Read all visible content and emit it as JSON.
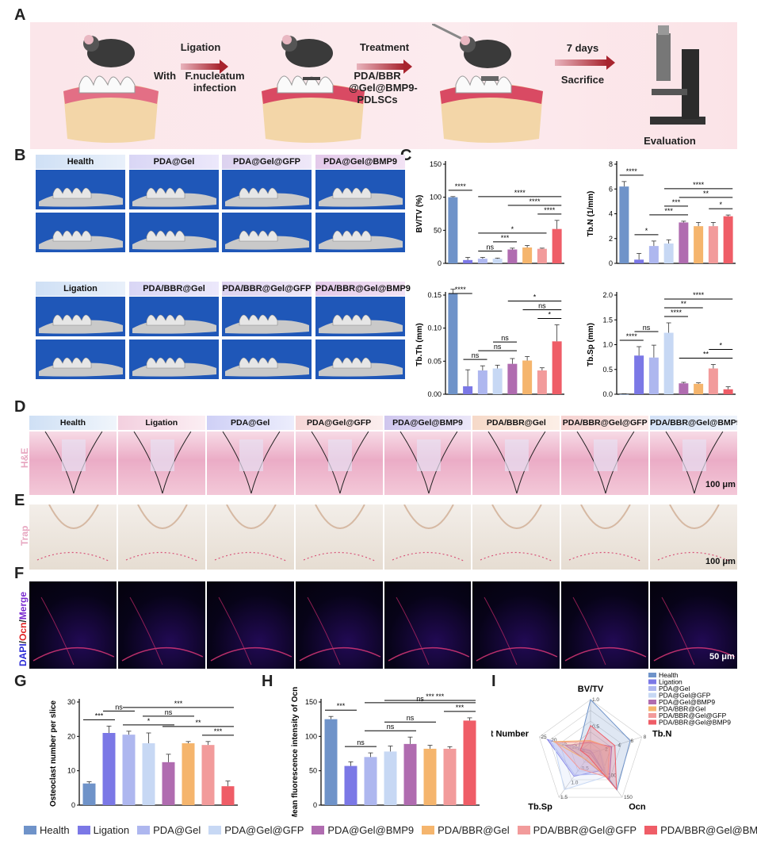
{
  "panels": {
    "A": "A",
    "B": "B",
    "C": "C",
    "D": "D",
    "E": "E",
    "F": "F",
    "G": "G",
    "H": "H",
    "I": "I"
  },
  "schematic": {
    "step1_title": "Ligation",
    "step1_sub1": "With",
    "step1_sub2": "F.nucleatum",
    "step1_sub3": "infection",
    "step2_title": "Treatment",
    "step2_sub": "PDA/BBR @Gel@BMP9- PDLSCs",
    "step3_title": "7 days",
    "step3_sub": "Sacrifice",
    "eval": "Evaluation"
  },
  "groups": [
    "Health",
    "Ligation",
    "PDA@Gel",
    "PDA@Gel@GFP",
    "PDA@Gel@BMP9",
    "PDA/BBR@Gel",
    "PDA/BBR@Gel@GFP",
    "PDA/BBR@Gel@BMP9"
  ],
  "colors": [
    "#6f93c9",
    "#7b78e6",
    "#aeb7ef",
    "#c7d8f4",
    "#b06cb0",
    "#f5b56d",
    "#f29b9b",
    "#ef5d67"
  ],
  "microct_labels": [
    "Health",
    "PDA@Gel",
    "PDA@Gel@GFP",
    "PDA@Gel@BMP9",
    "Ligation",
    "PDA/BBR@Gel",
    "PDA/BBR@Gel@GFP",
    "PDA/BBR@Gel@BMP9"
  ],
  "row_labels": {
    "he": "H&E",
    "trap": "Trap",
    "fluo_dapi": "DAPI",
    "fluo_ocn": "Ocn",
    "fluo_merge": "Merge"
  },
  "scale_bars": {
    "he": "100 μm",
    "trap": "100 μm",
    "fluo": "50 μm"
  },
  "chart_data": [
    {
      "type": "bar",
      "panel": "C",
      "ylabel": "BV/TV (%)",
      "ylim": [
        0,
        150
      ],
      "yticks": [
        0,
        50,
        100,
        150
      ],
      "categories": [
        "Health",
        "Ligation",
        "PDA@Gel",
        "PDA@Gel@GFP",
        "PDA@Gel@BMP9",
        "PDA/BBR@Gel",
        "PDA/BBR@Gel@GFP",
        "PDA/BBR@Gel@BMP9"
      ],
      "values": [
        100,
        5,
        7,
        7,
        21,
        24,
        22,
        52
      ],
      "errors": [
        1,
        4,
        2,
        1,
        2,
        3,
        1,
        13
      ],
      "annotations": [
        {
          "a": 0,
          "b": 1,
          "label": "****"
        },
        {
          "a": 2,
          "b": 3,
          "label": "ns"
        },
        {
          "a": 3,
          "b": 4,
          "label": "***"
        },
        {
          "a": 2,
          "b": 6,
          "label": "*"
        },
        {
          "a": 6,
          "b": 7,
          "label": "****"
        },
        {
          "a": 4,
          "b": 7,
          "label": "****"
        },
        {
          "a": 2,
          "b": 7,
          "label": "****"
        }
      ]
    },
    {
      "type": "bar",
      "panel": "C",
      "ylabel": "Tb.N (1/mm)",
      "ylim": [
        0,
        8
      ],
      "yticks": [
        0,
        2,
        4,
        6,
        8
      ],
      "categories": [
        "Health",
        "Ligation",
        "PDA@Gel",
        "PDA@Gel@GFP",
        "PDA@Gel@BMP9",
        "PDA/BBR@Gel",
        "PDA/BBR@Gel@GFP",
        "PDA/BBR@Gel@BMP9"
      ],
      "values": [
        6.2,
        0.3,
        1.4,
        1.6,
        3.3,
        3.0,
        3.0,
        3.8
      ],
      "errors": [
        0.4,
        0.5,
        0.4,
        0.3,
        0.1,
        0.3,
        0.3,
        0.1
      ],
      "annotations": [
        {
          "a": 0,
          "b": 1,
          "label": "****"
        },
        {
          "a": 1,
          "b": 2,
          "label": "*"
        },
        {
          "a": 2,
          "b": 4,
          "label": "***"
        },
        {
          "a": 3,
          "b": 4,
          "label": "***"
        },
        {
          "a": 6,
          "b": 7,
          "label": "*"
        },
        {
          "a": 4,
          "b": 7,
          "label": "**"
        },
        {
          "a": 3,
          "b": 7,
          "label": "****"
        }
      ]
    },
    {
      "type": "bar",
      "panel": "C",
      "ylabel": "Tb.Th (mm)",
      "ylim": [
        0,
        0.15
      ],
      "yticks": [
        0,
        0.05,
        0.1,
        0.15
      ],
      "ytick_labels": [
        "0.00",
        "0.05",
        "0.10",
        "0.15"
      ],
      "categories": [
        "Health",
        "Ligation",
        "PDA@Gel",
        "PDA@Gel@GFP",
        "PDA@Gel@BMP9",
        "PDA/BBR@Gel",
        "PDA/BBR@Gel@GFP",
        "PDA/BBR@Gel@BMP9"
      ],
      "values": [
        0.152,
        0.012,
        0.036,
        0.039,
        0.046,
        0.051,
        0.036,
        0.08
      ],
      "errors": [
        0.007,
        0.025,
        0.007,
        0.005,
        0.008,
        0.006,
        0.004,
        0.025
      ],
      "annotations": [
        {
          "a": 0,
          "b": 1,
          "label": "****"
        },
        {
          "a": 1,
          "b": 2,
          "label": "ns"
        },
        {
          "a": 2,
          "b": 4,
          "label": "ns"
        },
        {
          "a": 3,
          "b": 4,
          "label": "ns"
        },
        {
          "a": 6,
          "b": 7,
          "label": "*"
        },
        {
          "a": 5,
          "b": 7,
          "label": "ns"
        },
        {
          "a": 4,
          "b": 7,
          "label": "*"
        }
      ]
    },
    {
      "type": "bar",
      "panel": "C",
      "ylabel": "Tb.Sp (mm)",
      "ylim": [
        0,
        2.0
      ],
      "yticks": [
        0,
        0.5,
        1.0,
        1.5,
        2.0
      ],
      "ytick_labels": [
        "0.0",
        "0.5",
        "1.0",
        "1.5",
        "2.0"
      ],
      "categories": [
        "Health",
        "Ligation",
        "PDA@Gel",
        "PDA@Gel@GFP",
        "PDA@Gel@BMP9",
        "PDA/BBR@Gel",
        "PDA/BBR@Gel@GFP",
        "PDA/BBR@Gel@BMP9"
      ],
      "values": [
        0.0,
        0.78,
        0.74,
        1.24,
        0.22,
        0.21,
        0.52,
        0.1
      ],
      "errors": [
        0.01,
        0.18,
        0.25,
        0.2,
        0.02,
        0.02,
        0.08,
        0.05
      ],
      "annotations": [
        {
          "a": 0,
          "b": 1,
          "label": "****"
        },
        {
          "a": 1,
          "b": 2,
          "label": "ns"
        },
        {
          "a": 3,
          "b": 4,
          "label": "****"
        },
        {
          "a": 3,
          "b": 5,
          "label": "**"
        },
        {
          "a": 3,
          "b": 7,
          "label": "****"
        },
        {
          "a": 4,
          "b": 7,
          "label": "**"
        },
        {
          "a": 6,
          "b": 7,
          "label": "*"
        }
      ]
    },
    {
      "type": "bar",
      "panel": "G",
      "ylabel": "Osteoclast number per slice",
      "ylim": [
        0,
        30
      ],
      "yticks": [
        0,
        10,
        20,
        30
      ],
      "categories": [
        "Health",
        "Ligation",
        "PDA@Gel",
        "PDA@Gel@GFP",
        "PDA@Gel@BMP9",
        "PDA/BBR@Gel",
        "PDA/BBR@Gel@GFP",
        "PDA/BBR@Gel@BMP9"
      ],
      "values": [
        6.3,
        21,
        20.5,
        18,
        12.5,
        18,
        17.5,
        5.5
      ],
      "errors": [
        0.5,
        2.0,
        1.0,
        3.0,
        2.3,
        0.5,
        1.0,
        1.5
      ],
      "annotations": [
        {
          "a": 0,
          "b": 1,
          "label": "***"
        },
        {
          "a": 1,
          "b": 2,
          "label": "ns"
        },
        {
          "a": 2,
          "b": 4,
          "label": "*"
        },
        {
          "a": 3,
          "b": 5,
          "label": "ns"
        },
        {
          "a": 6,
          "b": 7,
          "label": "***"
        },
        {
          "a": 4,
          "b": 7,
          "label": "**"
        },
        {
          "a": 2,
          "b": 7,
          "label": "***"
        }
      ]
    },
    {
      "type": "bar",
      "panel": "H",
      "ylabel": "Mean fluorescence intensity of Ocn",
      "ylim": [
        0,
        150
      ],
      "yticks": [
        0,
        50,
        100,
        150
      ],
      "categories": [
        "Health",
        "Ligation",
        "PDA@Gel",
        "PDA@Gel@GFP",
        "PDA@Gel@BMP9",
        "PDA/BBR@Gel",
        "PDA/BBR@Gel@GFP",
        "PDA/BBR@Gel@BMP9"
      ],
      "values": [
        125,
        57,
        70,
        78,
        89,
        82,
        82,
        123
      ],
      "errors": [
        4,
        6,
        6,
        8,
        10,
        5,
        3,
        4
      ],
      "annotations": [
        {
          "a": 0,
          "b": 1,
          "label": "***"
        },
        {
          "a": 1,
          "b": 2,
          "label": "ns"
        },
        {
          "a": 2,
          "b": 4,
          "label": "ns"
        },
        {
          "a": 3,
          "b": 5,
          "label": "ns"
        },
        {
          "a": 6,
          "b": 7,
          "label": "***"
        },
        {
          "a": 2,
          "b": 7,
          "label": "ns"
        },
        {
          "a": 4,
          "b": 7,
          "label": "***"
        },
        {
          "a": 3,
          "b": 7,
          "label": "***"
        }
      ]
    },
    {
      "type": "radar",
      "panel": "I",
      "axes": [
        "BV/TV",
        "Tb.N",
        "Ocn",
        "Tb.Sp",
        "Osteoclast Number"
      ],
      "axis_max": [
        1.0,
        8,
        150,
        1.5,
        25
      ],
      "axis_ticks": [
        [
          "0.5",
          "1.0"
        ],
        [
          "2",
          "4",
          "6",
          "8"
        ],
        [
          "100",
          "150"
        ],
        [
          "0.5",
          "1.0",
          "1.5"
        ],
        [
          "5",
          "10",
          "15",
          "20",
          "25"
        ]
      ],
      "series_names": [
        "Health",
        "Ligation",
        "PDA@Gel",
        "PDA@Gel@GFP",
        "PDA@Gel@BMP9",
        "PDA/BBR@Gel",
        "PDA/BBR@Gel@GFP",
        "PDA/BBR@Gel@BMP9"
      ],
      "values": [
        [
          1.0,
          6.2,
          125,
          0.0,
          6
        ],
        [
          0.05,
          0.3,
          57,
          0.78,
          21
        ],
        [
          0.07,
          1.4,
          70,
          0.74,
          20
        ],
        [
          0.07,
          1.6,
          78,
          1.24,
          18
        ],
        [
          0.21,
          3.3,
          89,
          0.22,
          12
        ],
        [
          0.24,
          3.0,
          82,
          0.21,
          18
        ],
        [
          0.22,
          3.0,
          82,
          0.52,
          17
        ],
        [
          0.52,
          3.8,
          123,
          0.1,
          5
        ]
      ]
    }
  ]
}
